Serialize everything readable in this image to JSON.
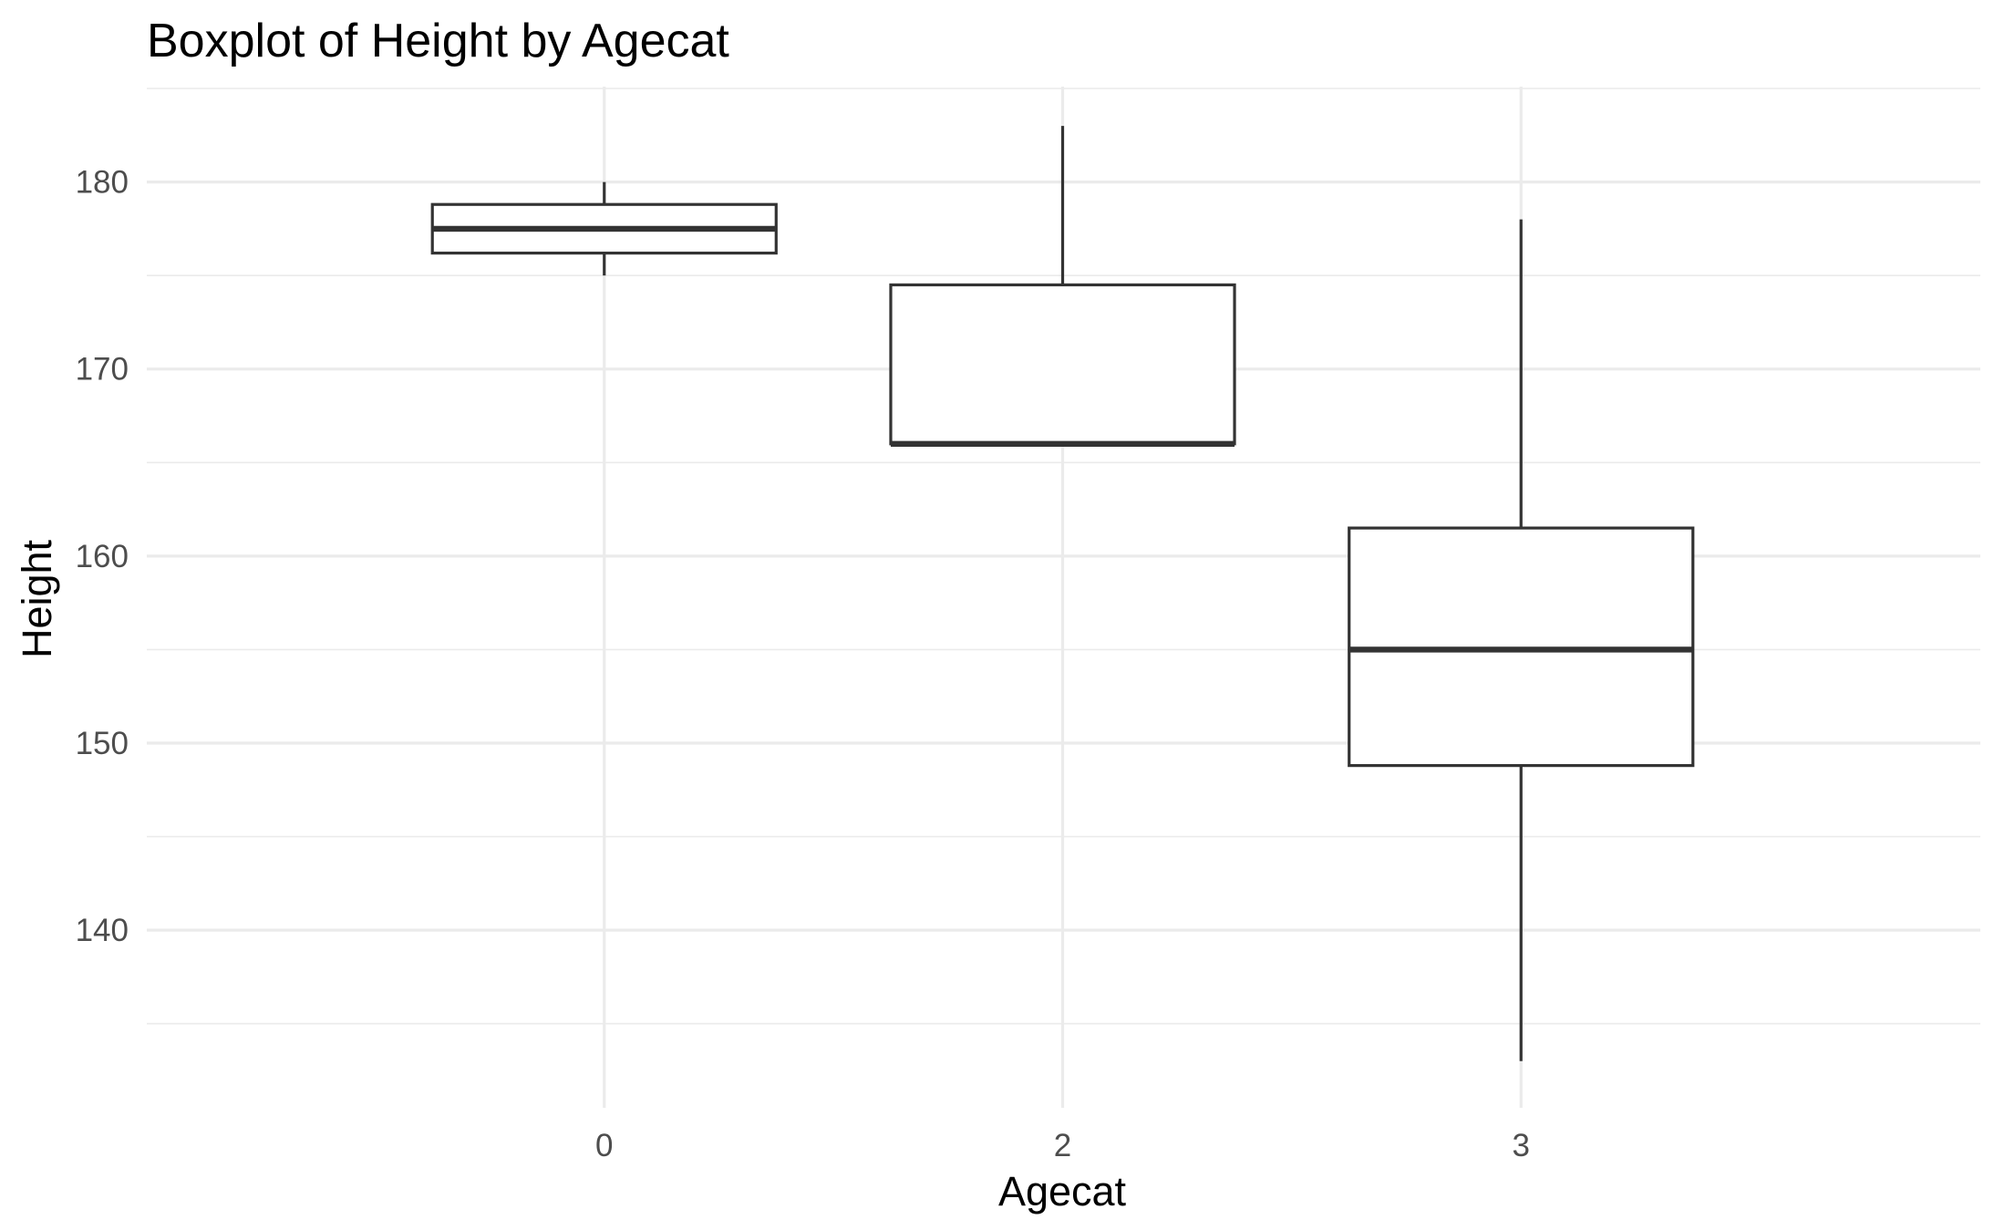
{
  "chart_data": {
    "type": "boxplot",
    "title": "Boxplot of Height by Agecat",
    "xlabel": "Agecat",
    "ylabel": "Height",
    "categories": [
      "0",
      "2",
      "3"
    ],
    "boxes": [
      {
        "category": "0",
        "min": 175,
        "q1": 176.2,
        "median": 177.5,
        "q3": 178.8,
        "max": 180
      },
      {
        "category": "2",
        "min": 166,
        "q1": 166,
        "median": 166,
        "q3": 174.5,
        "max": 183
      },
      {
        "category": "3",
        "min": 133,
        "q1": 148.8,
        "median": 155,
        "q3": 161.5,
        "max": 178
      }
    ],
    "ylim": [
      130.5,
      185.1
    ],
    "yticks": [
      140,
      150,
      160,
      170,
      180
    ],
    "yticks_minor": [
      135,
      145,
      155,
      165,
      175,
      185
    ],
    "grid": true,
    "legend": "none",
    "colors": {
      "box_fill": "#ffffff",
      "box_stroke": "#333333",
      "grid": "#ebebeb",
      "tick_text": "#4d4d4d",
      "text": "#000000"
    }
  }
}
